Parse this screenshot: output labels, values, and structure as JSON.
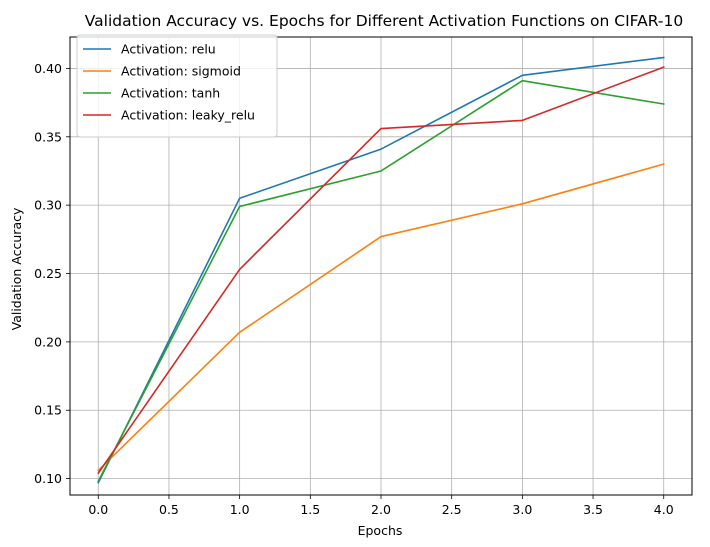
{
  "chart_data": {
    "type": "line",
    "title": "Validation Accuracy vs. Epochs for Different Activation Functions on CIFAR-10",
    "xlabel": "Epochs",
    "ylabel": "Validation Accuracy",
    "xlim": [
      -0.2,
      4.2
    ],
    "ylim": [
      0.088,
      0.423
    ],
    "xticks": [
      0.0,
      0.5,
      1.0,
      1.5,
      2.0,
      2.5,
      3.0,
      3.5,
      4.0
    ],
    "xtick_labels": [
      "0.0",
      "0.5",
      "1.0",
      "1.5",
      "2.0",
      "2.5",
      "3.0",
      "3.5",
      "4.0"
    ],
    "yticks": [
      0.1,
      0.15,
      0.2,
      0.25,
      0.3,
      0.35,
      0.4
    ],
    "ytick_labels": [
      "0.10",
      "0.15",
      "0.20",
      "0.25",
      "0.30",
      "0.35",
      "0.40"
    ],
    "grid": true,
    "legend_position": "top-left",
    "x": [
      0,
      1,
      2,
      3,
      4
    ],
    "series": [
      {
        "name": "Activation: relu",
        "color": "#1f77b4",
        "values": [
          0.097,
          0.305,
          0.341,
          0.395,
          0.408
        ]
      },
      {
        "name": "Activation: sigmoid",
        "color": "#ff7f0e",
        "values": [
          0.106,
          0.207,
          0.277,
          0.301,
          0.33
        ]
      },
      {
        "name": "Activation: tanh",
        "color": "#2ca02c",
        "values": [
          0.098,
          0.299,
          0.325,
          0.391,
          0.374
        ]
      },
      {
        "name": "Activation: leaky_relu",
        "color": "#d62728",
        "values": [
          0.104,
          0.253,
          0.356,
          0.362,
          0.401
        ]
      }
    ]
  }
}
